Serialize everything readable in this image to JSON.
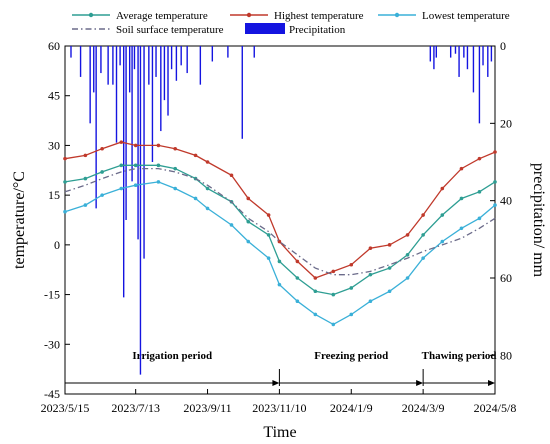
{
  "chart_data": {
    "type": "line",
    "xlabel": "Time",
    "ylabel": "temperature/°C",
    "y2label": "precipitation/ mm",
    "xlim": [
      "2023-05-15",
      "2024-05-08"
    ],
    "x_ticks": [
      "2023/5/15",
      "2023/7/13",
      "2023/9/11",
      "2023/11/10",
      "2024/1/9",
      "2024/3/9",
      "2024/5/8"
    ],
    "ylim": [
      -45,
      60
    ],
    "y_ticks": [
      "-45",
      "-30",
      "-15",
      "0",
      "15",
      "30",
      "45",
      "60"
    ],
    "y2lim": [
      0,
      90
    ],
    "y2_reversed": true,
    "y2_ticks": [
      "0",
      "20",
      "40",
      "60",
      "80"
    ],
    "legend": {
      "placement": "top",
      "entries": [
        {
          "label": "Average temperature",
          "color": "#2e9e93",
          "marker": "circle"
        },
        {
          "label": "Highest temperature",
          "color": "#c0392b",
          "marker": "circle"
        },
        {
          "label": "Lowest temperature",
          "color": "#3ab0d8",
          "marker": "circle"
        },
        {
          "label": "Soil surface temperature",
          "color": "#6b6b8a",
          "style": "dash-dot"
        },
        {
          "label": "Precipitation",
          "color": "#1414e0",
          "style": "bar"
        }
      ]
    },
    "periods": [
      {
        "label": "Irrigation period",
        "start": "2023-05-15",
        "end": "2023-11-10"
      },
      {
        "label": "Freezing period",
        "start": "2023-11-10",
        "end": "2024-03-09"
      },
      {
        "label": "Thawing period",
        "start": "2024-03-09",
        "end": "2024-05-08"
      }
    ],
    "series": [
      {
        "name": "Average temperature",
        "key": "avg",
        "points": [
          [
            "2023-05-15",
            19
          ],
          [
            "2023-06-01",
            20
          ],
          [
            "2023-06-15",
            22
          ],
          [
            "2023-07-01",
            24
          ],
          [
            "2023-07-13",
            24
          ],
          [
            "2023-08-01",
            24
          ],
          [
            "2023-08-15",
            23
          ],
          [
            "2023-09-01",
            20
          ],
          [
            "2023-09-11",
            17
          ],
          [
            "2023-10-01",
            13
          ],
          [
            "2023-10-15",
            7
          ],
          [
            "2023-11-01",
            3
          ],
          [
            "2023-11-10",
            -5
          ],
          [
            "2023-11-25",
            -10
          ],
          [
            "2023-12-10",
            -14
          ],
          [
            "2023-12-25",
            -15
          ],
          [
            "2024-01-09",
            -13
          ],
          [
            "2024-01-25",
            -9
          ],
          [
            "2024-02-10",
            -7
          ],
          [
            "2024-02-25",
            -3
          ],
          [
            "2024-03-09",
            3
          ],
          [
            "2024-03-25",
            9
          ],
          [
            "2024-04-10",
            14
          ],
          [
            "2024-04-25",
            16
          ],
          [
            "2024-05-08",
            19
          ]
        ]
      },
      {
        "name": "Highest temperature",
        "key": "high",
        "points": [
          [
            "2023-05-15",
            26
          ],
          [
            "2023-06-01",
            27
          ],
          [
            "2023-06-15",
            29
          ],
          [
            "2023-07-01",
            31
          ],
          [
            "2023-07-13",
            30
          ],
          [
            "2023-08-01",
            30
          ],
          [
            "2023-08-15",
            29
          ],
          [
            "2023-09-01",
            27
          ],
          [
            "2023-09-11",
            25
          ],
          [
            "2023-10-01",
            21
          ],
          [
            "2023-10-15",
            14
          ],
          [
            "2023-11-01",
            9
          ],
          [
            "2023-11-10",
            1
          ],
          [
            "2023-11-25",
            -5
          ],
          [
            "2023-12-10",
            -10
          ],
          [
            "2023-12-25",
            -8
          ],
          [
            "2024-01-09",
            -6
          ],
          [
            "2024-01-25",
            -1
          ],
          [
            "2024-02-10",
            0
          ],
          [
            "2024-02-25",
            3
          ],
          [
            "2024-03-09",
            9
          ],
          [
            "2024-03-25",
            17
          ],
          [
            "2024-04-10",
            23
          ],
          [
            "2024-04-25",
            26
          ],
          [
            "2024-05-08",
            28
          ]
        ]
      },
      {
        "name": "Lowest temperature",
        "key": "low",
        "points": [
          [
            "2023-05-15",
            10
          ],
          [
            "2023-06-01",
            12
          ],
          [
            "2023-06-15",
            15
          ],
          [
            "2023-07-01",
            17
          ],
          [
            "2023-07-13",
            18
          ],
          [
            "2023-08-01",
            19
          ],
          [
            "2023-08-15",
            17
          ],
          [
            "2023-09-01",
            14
          ],
          [
            "2023-09-11",
            11
          ],
          [
            "2023-10-01",
            6
          ],
          [
            "2023-10-15",
            1
          ],
          [
            "2023-11-01",
            -4
          ],
          [
            "2023-11-10",
            -12
          ],
          [
            "2023-11-25",
            -17
          ],
          [
            "2023-12-10",
            -21
          ],
          [
            "2023-12-25",
            -24
          ],
          [
            "2024-01-09",
            -21
          ],
          [
            "2024-01-25",
            -17
          ],
          [
            "2024-02-10",
            -14
          ],
          [
            "2024-02-25",
            -10
          ],
          [
            "2024-03-09",
            -4
          ],
          [
            "2024-03-25",
            1
          ],
          [
            "2024-04-10",
            5
          ],
          [
            "2024-04-25",
            8
          ],
          [
            "2024-05-08",
            12
          ]
        ]
      },
      {
        "name": "Soil surface temperature",
        "key": "soil",
        "points": [
          [
            "2023-05-15",
            16
          ],
          [
            "2023-06-01",
            18
          ],
          [
            "2023-06-15",
            20
          ],
          [
            "2023-07-01",
            22
          ],
          [
            "2023-07-13",
            23
          ],
          [
            "2023-08-01",
            23
          ],
          [
            "2023-08-15",
            22
          ],
          [
            "2023-09-01",
            20
          ],
          [
            "2023-09-11",
            18
          ],
          [
            "2023-10-01",
            13
          ],
          [
            "2023-10-15",
            8
          ],
          [
            "2023-11-01",
            4
          ],
          [
            "2023-11-10",
            1
          ],
          [
            "2023-11-25",
            -3
          ],
          [
            "2023-12-10",
            -7
          ],
          [
            "2023-12-25",
            -9
          ],
          [
            "2024-01-09",
            -9
          ],
          [
            "2024-01-25",
            -8
          ],
          [
            "2024-02-10",
            -6
          ],
          [
            "2024-02-25",
            -4
          ],
          [
            "2024-03-09",
            -2
          ],
          [
            "2024-03-25",
            0
          ],
          [
            "2024-04-10",
            2
          ],
          [
            "2024-04-25",
            5
          ],
          [
            "2024-05-08",
            8
          ]
        ]
      }
    ],
    "precipitation": [
      [
        "2023-05-20",
        3
      ],
      [
        "2023-05-28",
        8
      ],
      [
        "2023-06-05",
        20
      ],
      [
        "2023-06-08",
        12
      ],
      [
        "2023-06-10",
        42
      ],
      [
        "2023-06-14",
        7
      ],
      [
        "2023-06-20",
        10
      ],
      [
        "2023-06-24",
        10
      ],
      [
        "2023-06-27",
        25
      ],
      [
        "2023-06-30",
        5
      ],
      [
        "2023-07-03",
        65
      ],
      [
        "2023-07-05",
        45
      ],
      [
        "2023-07-08",
        12
      ],
      [
        "2023-07-10",
        35
      ],
      [
        "2023-07-12",
        6
      ],
      [
        "2023-07-15",
        50
      ],
      [
        "2023-07-17",
        85
      ],
      [
        "2023-07-20",
        55
      ],
      [
        "2023-07-24",
        10
      ],
      [
        "2023-07-27",
        30
      ],
      [
        "2023-07-30",
        8
      ],
      [
        "2023-08-03",
        22
      ],
      [
        "2023-08-06",
        14
      ],
      [
        "2023-08-09",
        18
      ],
      [
        "2023-08-12",
        6
      ],
      [
        "2023-08-16",
        9
      ],
      [
        "2023-08-20",
        5
      ],
      [
        "2023-08-25",
        7
      ],
      [
        "2023-09-05",
        10
      ],
      [
        "2023-09-15",
        4
      ],
      [
        "2023-09-28",
        3
      ],
      [
        "2023-10-10",
        24
      ],
      [
        "2023-10-20",
        3
      ],
      [
        "2024-03-15",
        4
      ],
      [
        "2024-03-18",
        6
      ],
      [
        "2024-03-20",
        3
      ],
      [
        "2024-04-01",
        3
      ],
      [
        "2024-04-05",
        2
      ],
      [
        "2024-04-08",
        8
      ],
      [
        "2024-04-12",
        3
      ],
      [
        "2024-04-15",
        6
      ],
      [
        "2024-04-20",
        12
      ],
      [
        "2024-04-25",
        20
      ],
      [
        "2024-04-28",
        5
      ],
      [
        "2024-05-02",
        8
      ],
      [
        "2024-05-05",
        4
      ]
    ]
  }
}
